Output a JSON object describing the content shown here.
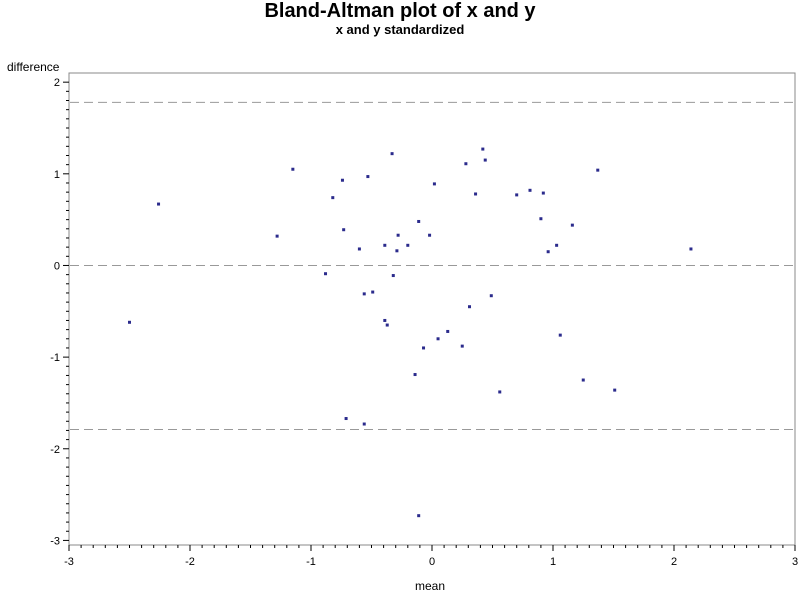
{
  "chart_data": {
    "type": "scatter",
    "title": "Bland-Altman plot of x and y",
    "subtitle": "x and y standardized",
    "xlabel": "mean",
    "ylabel": "difference",
    "xlim": [
      -3,
      3
    ],
    "ylim": [
      -3.05,
      2.1
    ],
    "xticks": [
      -3,
      -2,
      -1,
      0,
      1,
      2,
      3
    ],
    "xtick_labels": [
      "-3",
      "-2",
      "-1",
      "0",
      "1",
      "2",
      "3"
    ],
    "yticks": [
      -3,
      -2,
      -1,
      0,
      1,
      2
    ],
    "ytick_labels": [
      "-3",
      "-2",
      "-1",
      "0",
      "1",
      "2"
    ],
    "grid": false,
    "reference_lines": [
      1.78,
      0,
      -1.79
    ],
    "marker_color": "#2b2b8c",
    "reference_line_color": "#999999",
    "points": [
      {
        "x": -2.5,
        "y": -0.62
      },
      {
        "x": -2.26,
        "y": 0.67
      },
      {
        "x": -1.28,
        "y": 0.32
      },
      {
        "x": -1.15,
        "y": 1.05
      },
      {
        "x": -0.88,
        "y": -0.09
      },
      {
        "x": -0.82,
        "y": 0.74
      },
      {
        "x": -0.74,
        "y": 0.93
      },
      {
        "x": -0.73,
        "y": 0.39
      },
      {
        "x": -0.71,
        "y": -1.67
      },
      {
        "x": -0.6,
        "y": 0.18
      },
      {
        "x": -0.56,
        "y": -0.31
      },
      {
        "x": -0.56,
        "y": -1.73
      },
      {
        "x": -0.53,
        "y": 0.97
      },
      {
        "x": -0.49,
        "y": -0.29
      },
      {
        "x": -0.39,
        "y": 0.22
      },
      {
        "x": -0.39,
        "y": -0.6
      },
      {
        "x": -0.37,
        "y": -0.65
      },
      {
        "x": -0.33,
        "y": 1.22
      },
      {
        "x": -0.32,
        "y": -0.11
      },
      {
        "x": -0.29,
        "y": 0.16
      },
      {
        "x": -0.28,
        "y": 0.33
      },
      {
        "x": -0.2,
        "y": 0.22
      },
      {
        "x": -0.14,
        "y": -1.19
      },
      {
        "x": -0.11,
        "y": 0.48
      },
      {
        "x": -0.11,
        "y": -2.73
      },
      {
        "x": -0.07,
        "y": -0.9
      },
      {
        "x": -0.02,
        "y": 0.33
      },
      {
        "x": 0.02,
        "y": 0.89
      },
      {
        "x": 0.05,
        "y": -0.8
      },
      {
        "x": 0.13,
        "y": -0.72
      },
      {
        "x": 0.25,
        "y": -0.88
      },
      {
        "x": 0.28,
        "y": 1.11
      },
      {
        "x": 0.31,
        "y": -0.45
      },
      {
        "x": 0.36,
        "y": 0.78
      },
      {
        "x": 0.42,
        "y": 1.27
      },
      {
        "x": 0.44,
        "y": 1.15
      },
      {
        "x": 0.49,
        "y": -0.33
      },
      {
        "x": 0.56,
        "y": -1.38
      },
      {
        "x": 0.7,
        "y": 0.77
      },
      {
        "x": 0.81,
        "y": 0.82
      },
      {
        "x": 0.9,
        "y": 0.51
      },
      {
        "x": 0.92,
        "y": 0.79
      },
      {
        "x": 0.96,
        "y": 0.15
      },
      {
        "x": 1.03,
        "y": 0.22
      },
      {
        "x": 1.06,
        "y": -0.76
      },
      {
        "x": 1.16,
        "y": 0.44
      },
      {
        "x": 1.25,
        "y": -1.25
      },
      {
        "x": 1.37,
        "y": 1.04
      },
      {
        "x": 1.51,
        "y": -1.36
      },
      {
        "x": 2.14,
        "y": 0.18
      }
    ]
  }
}
